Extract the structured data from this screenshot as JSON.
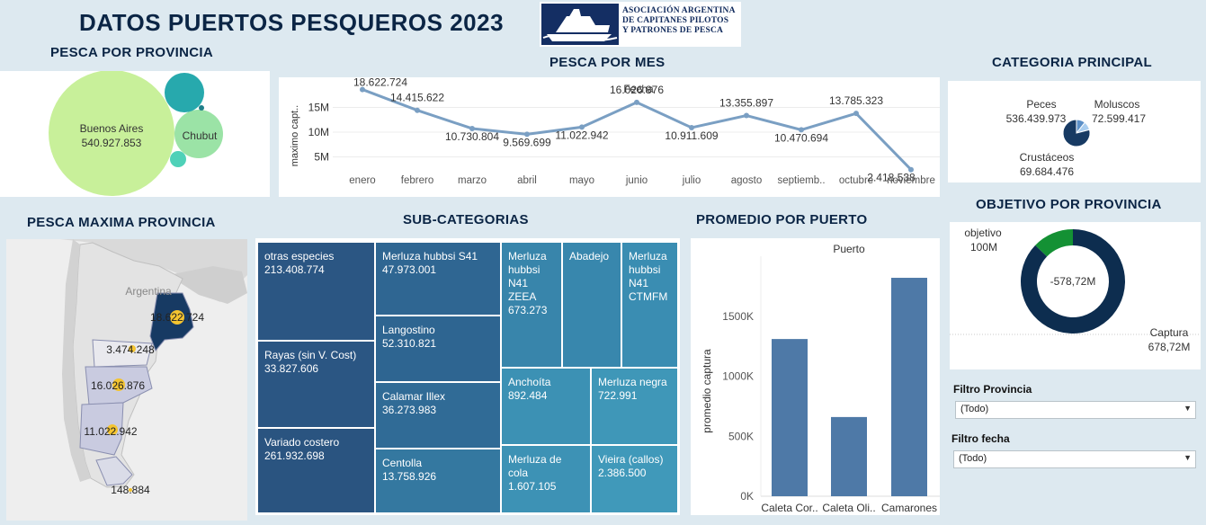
{
  "header": {
    "title": "DATOS PUERTOS PESQUEROS 2023"
  },
  "logo": {
    "line1": "ASOCIACIÓN ARGENTINA",
    "line2": "DE CAPITANES PILOTOS",
    "line3": "Y PATRONES DE PESCA",
    "icon": "ship-icon"
  },
  "provincia": {
    "title": "PESCA POR PROVINCIA",
    "bubbles": [
      {
        "name": "Buenos Aires",
        "value": "540.927.853",
        "color": "#c8f09a"
      },
      {
        "name": "Chubut",
        "value": "",
        "color": "#9be3a6"
      },
      {
        "name": "",
        "value": "",
        "color": "#27a9ad"
      },
      {
        "name": "",
        "value": "",
        "color": "#4fd1b8"
      },
      {
        "name": "",
        "value": "",
        "color": "#1f7f8a"
      }
    ]
  },
  "mes": {
    "title": "PESCA POR MES",
    "header": "Fecha",
    "ylabel": "maximo capt..",
    "points": [
      "18.622.724",
      "14.415.622",
      "10.730.804",
      "9.569.699",
      "11.022.942",
      "16.026.876",
      "10.911.609",
      "13.355.897",
      "10.470.694",
      "13.785.323",
      "2.418.538"
    ]
  },
  "chart_data": [
    {
      "type": "line",
      "title": "PESCA POR MES",
      "xlabel": "Fecha",
      "ylabel": "maximo capt..",
      "categories": [
        "enero",
        "febrero",
        "marzo",
        "abril",
        "mayo",
        "junio",
        "julio",
        "agosto",
        "septiemb..",
        "octubre",
        "noviembre"
      ],
      "values": [
        18622724,
        14415622,
        10730804,
        9569699,
        11022942,
        16026876,
        10911609,
        13355897,
        10470694,
        13785323,
        2418538
      ],
      "yticks": [
        "15M",
        "10M",
        "5M"
      ],
      "ylim": [
        0,
        20000000
      ]
    },
    {
      "type": "bar",
      "title": "PROMEDIO POR PUERTO",
      "xlabel": "Puerto",
      "ylabel": "promedio captura",
      "categories": [
        "Caleta Cor..",
        "Caleta Oli..",
        "Camarones"
      ],
      "values": [
        1310000,
        660000,
        1820000
      ],
      "yticks": [
        "1500K",
        "1000K",
        "500K",
        "0K"
      ],
      "ylim": [
        0,
        2000000
      ]
    },
    {
      "type": "pie",
      "title": "CATEGORIA PRINCIPAL",
      "labels": [
        "Peces",
        "Moluscos",
        "Crustáceos"
      ],
      "values": [
        536439973,
        72599417,
        69684476
      ],
      "display": [
        "536.439.973",
        "72.599.417",
        "69.684.476"
      ],
      "colors": [
        "#173a63",
        "#5b8fc7",
        "#a9cdef"
      ]
    },
    {
      "type": "pie",
      "title": "OBJETIVO POR PROVINCIA",
      "labels": [
        "Captura",
        "objetivo"
      ],
      "values": [
        678.72,
        100
      ],
      "display": [
        "678,72M",
        "100M"
      ],
      "center": "-578,72M",
      "colors": [
        "#0d2d4f",
        "#149134"
      ]
    }
  ],
  "categoria": {
    "title": "CATEGORIA PRINCIPAL",
    "items": [
      {
        "name": "Peces",
        "value": "536.439.973"
      },
      {
        "name": "Moluscos",
        "value": "72.599.417"
      },
      {
        "name": "Crustáceos",
        "value": "69.684.476"
      }
    ]
  },
  "maxima": {
    "title": "PESCA MAXIMA PROVINCIA",
    "country": "Argentina",
    "labels": [
      "18.622.724",
      "3.474.248",
      "16.026.876",
      "11.022.942",
      "148.884"
    ]
  },
  "subcat": {
    "title": "SUB-CATEGORIAS",
    "cells": [
      {
        "name": "otras especies",
        "value": "213.408.774",
        "color": "#2b5683"
      },
      {
        "name": "Rayas (sin V. Cost)",
        "value": "33.827.606",
        "color": "#2b5683"
      },
      {
        "name": "Variado costero",
        "value": "261.932.698",
        "color": "#2a5480"
      },
      {
        "name": "Merluza hubbsi S41",
        "value": "47.973.001",
        "color": "#2f6692"
      },
      {
        "name": "Langostino",
        "value": "52.310.821",
        "color": "#2e6591"
      },
      {
        "name": "Calamar Illex",
        "value": "36.273.983",
        "color": "#306b96"
      },
      {
        "name": "Centolla",
        "value": "13.758.926",
        "color": "#3478a0"
      },
      {
        "name": "Merluza hubbsi N41 ZEEA",
        "value": "673.273",
        "color": "#3885ab"
      },
      {
        "name": "Abadejo",
        "value": "",
        "color": "#3887ad"
      },
      {
        "name": "Merluza hubbsi N41 CTMFM",
        "value": "",
        "color": "#3a8db2"
      },
      {
        "name": "Anchoíta",
        "value": "892.484",
        "color": "#3c91b4"
      },
      {
        "name": "Merluza negra",
        "value": "722.991",
        "color": "#3f97b8"
      },
      {
        "name": "Merluza de cola",
        "value": "1.607.105",
        "color": "#3d92b5"
      },
      {
        "name": "Vieira (callos)",
        "value": "2.386.500",
        "color": "#4099ba"
      }
    ]
  },
  "puerto": {
    "title": "PROMEDIO POR PUERTO",
    "header": "Puerto",
    "ylabel": "promedio captura"
  },
  "objetivo": {
    "title": "OBJETIVO POR PROVINCIA",
    "objetivo_label": "objetivo",
    "objetivo_value": "100M",
    "captura_label": "Captura",
    "captura_value": "678,72M",
    "center": "-578,72M"
  },
  "filters": {
    "provincia": {
      "label": "Filtro Provincia",
      "value": "(Todo)"
    },
    "fecha": {
      "label": "Filtro fecha",
      "value": "(Todo)"
    }
  }
}
